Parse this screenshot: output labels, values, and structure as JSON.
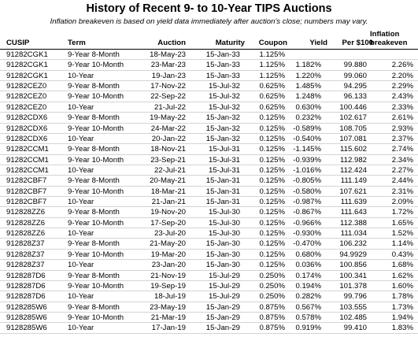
{
  "title": "History of Recent 9- to 10-Year TIPS Auctions",
  "subtitle": "Inflation breakeven is based on yield data immediately after auction's close; numbers may vary.",
  "columns": {
    "cusip": "CUSIP",
    "term": "Term",
    "auction": "Auction",
    "maturity": "Maturity",
    "coupon": "Coupon",
    "yield": "Yield",
    "per100": "Per $100",
    "breakeven_line1": "Inflation",
    "breakeven_line2": "breakeven"
  },
  "rows": [
    {
      "cusip": "91282CGK1",
      "term": "9-Year 8-Month",
      "auction": "18-May-23",
      "maturity": "15-Jan-33",
      "coupon": "1.125%",
      "yield": "",
      "per100": "",
      "breakeven": ""
    },
    {
      "cusip": "91282CGK1",
      "term": "9-Year 10-Month",
      "auction": "23-Mar-23",
      "maturity": "15-Jan-33",
      "coupon": "1.125%",
      "yield": "1.182%",
      "per100": "99.880",
      "breakeven": "2.26%"
    },
    {
      "cusip": "91282CGK1",
      "term": "10-Year",
      "auction": "19-Jan-23",
      "maturity": "15-Jan-33",
      "coupon": "1.125%",
      "yield": "1.220%",
      "per100": "99.060",
      "breakeven": "2.20%"
    },
    {
      "cusip": "91282CEZ0",
      "term": "9-Year 8-Month",
      "auction": "17-Nov-22",
      "maturity": "15-Jul-32",
      "coupon": "0.625%",
      "yield": "1.485%",
      "per100": "94.295",
      "breakeven": "2.29%"
    },
    {
      "cusip": "91282CEZ0",
      "term": "9-Year 10-Month",
      "auction": "22-Sep-22",
      "maturity": "15-Jul-32",
      "coupon": "0.625%",
      "yield": "1.248%",
      "per100": "96.133",
      "breakeven": "2.43%"
    },
    {
      "cusip": "91282CEZ0",
      "term": "10-Year",
      "auction": "21-Jul-22",
      "maturity": "15-Jul-32",
      "coupon": "0.625%",
      "yield": "0.630%",
      "per100": "100.446",
      "breakeven": "2.33%"
    },
    {
      "cusip": "91282CDX6",
      "term": "9-Year 8-Month",
      "auction": "19-May-22",
      "maturity": "15-Jan-32",
      "coupon": "0.125%",
      "yield": "0.232%",
      "per100": "102.617",
      "breakeven": "2.61%"
    },
    {
      "cusip": "91282CDX6",
      "term": "9-Year 10-Month",
      "auction": "24-Mar-22",
      "maturity": "15-Jan-32",
      "coupon": "0.125%",
      "yield": "-0.589%",
      "per100": "108.705",
      "breakeven": "2.93%"
    },
    {
      "cusip": "91282CDX6",
      "term": "10-Year",
      "auction": "20-Jan-22",
      "maturity": "15-Jan-32",
      "coupon": "0.125%",
      "yield": "-0.540%",
      "per100": "107.081",
      "breakeven": "2.37%"
    },
    {
      "cusip": "91282CCM1",
      "term": "9-Year 8-Month",
      "auction": "18-Nov-21",
      "maturity": "15-Jul-31",
      "coupon": "0.125%",
      "yield": "-1.145%",
      "per100": "115.602",
      "breakeven": "2.74%"
    },
    {
      "cusip": "91282CCM1",
      "term": "9-Year 10-Month",
      "auction": "23-Sep-21",
      "maturity": "15-Jul-31",
      "coupon": "0.125%",
      "yield": "-0.939%",
      "per100": "112.982",
      "breakeven": "2.34%"
    },
    {
      "cusip": "91282CCM1",
      "term": "10-Year",
      "auction": "22-Jul-21",
      "maturity": "15-Jul-31",
      "coupon": "0.125%",
      "yield": "-1.016%",
      "per100": "112.424",
      "breakeven": "2.27%"
    },
    {
      "cusip": "91282CBF7",
      "term": "9-Year 8-Month",
      "auction": "20-May-21",
      "maturity": "15-Jan-31",
      "coupon": "0.125%",
      "yield": "-0.805%",
      "per100": "111.149",
      "breakeven": "2.44%"
    },
    {
      "cusip": "91282CBF7",
      "term": "9-Year 10-Month",
      "auction": "18-Mar-21",
      "maturity": "15-Jan-31",
      "coupon": "0.125%",
      "yield": "-0.580%",
      "per100": "107.621",
      "breakeven": "2.31%"
    },
    {
      "cusip": "91282CBF7",
      "term": "10-Year",
      "auction": "21-Jan-21",
      "maturity": "15-Jan-31",
      "coupon": "0.125%",
      "yield": "-0.987%",
      "per100": "111.639",
      "breakeven": "2.09%"
    },
    {
      "cusip": "912828ZZ6",
      "term": "9-Year 8-Month",
      "auction": "19-Nov-20",
      "maturity": "15-Jul-30",
      "coupon": "0.125%",
      "yield": "-0.867%",
      "per100": "111.643",
      "breakeven": "1.72%"
    },
    {
      "cusip": "912828ZZ6",
      "term": "9-Year 10-Month",
      "auction": "17-Sep-20",
      "maturity": "15-Jul-30",
      "coupon": "0.125%",
      "yield": "-0.966%",
      "per100": "112.388",
      "breakeven": "1.65%"
    },
    {
      "cusip": "912828ZZ6",
      "term": "10-Year",
      "auction": "23-Jul-20",
      "maturity": "15-Jul-30",
      "coupon": "0.125%",
      "yield": "-0.930%",
      "per100": "111.034",
      "breakeven": "1.52%"
    },
    {
      "cusip": "912828Z37",
      "term": "9-Year 8-Month",
      "auction": "21-May-20",
      "maturity": "15-Jan-30",
      "coupon": "0.125%",
      "yield": "-0.470%",
      "per100": "106.232",
      "breakeven": "1.14%"
    },
    {
      "cusip": "912828Z37",
      "term": "9-Year 10-Month",
      "auction": "19-Mar-20",
      "maturity": "15-Jan-30",
      "coupon": "0.125%",
      "yield": "0.680%",
      "per100": "94.9929",
      "breakeven": "0.43%"
    },
    {
      "cusip": "912828Z37",
      "term": "10-Year",
      "auction": "23-Jan-20",
      "maturity": "15-Jan-30",
      "coupon": "0.125%",
      "yield": "0.036%",
      "per100": "100.856",
      "breakeven": "1.68%"
    },
    {
      "cusip": "9128287D6",
      "term": "9-Year 8-Month",
      "auction": "21-Nov-19",
      "maturity": "15-Jul-29",
      "coupon": "0.250%",
      "yield": "0.174%",
      "per100": "100.341",
      "breakeven": "1.62%"
    },
    {
      "cusip": "9128287D6",
      "term": "9-Year 10-Month",
      "auction": "19-Sep-19",
      "maturity": "15-Jul-29",
      "coupon": "0.250%",
      "yield": "0.194%",
      "per100": "101.378",
      "breakeven": "1.60%"
    },
    {
      "cusip": "9128287D6",
      "term": "10-Year",
      "auction": "18-Jul-19",
      "maturity": "15-Jul-29",
      "coupon": "0.250%",
      "yield": "0.282%",
      "per100": "99.796",
      "breakeven": "1.78%"
    },
    {
      "cusip": "9128285W6",
      "term": "9-Year 8-Month",
      "auction": "23-May-19",
      "maturity": "15-Jan-29",
      "coupon": "0.875%",
      "yield": "0.567%",
      "per100": "103.555",
      "breakeven": "1.73%"
    },
    {
      "cusip": "9128285W6",
      "term": "9-Year 10-Month",
      "auction": "21-Mar-19",
      "maturity": "15-Jan-29",
      "coupon": "0.875%",
      "yield": "0.578%",
      "per100": "102.485",
      "breakeven": "1.94%"
    },
    {
      "cusip": "9128285W6",
      "term": "10-Year",
      "auction": "17-Jan-19",
      "maturity": "15-Jan-29",
      "coupon": "0.875%",
      "yield": "0.919%",
      "per100": "99.410",
      "breakeven": "1.83%"
    }
  ]
}
